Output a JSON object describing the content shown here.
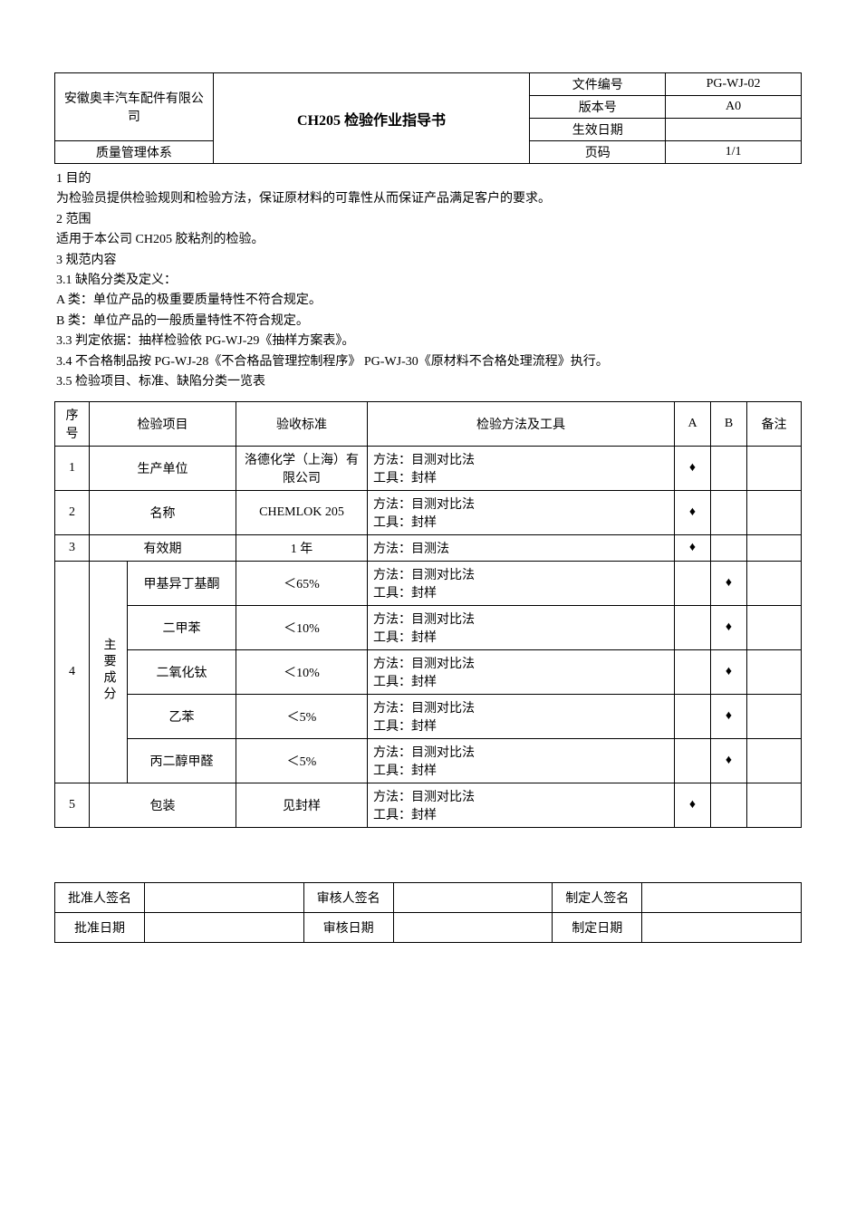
{
  "header": {
    "company": "安徽奥丰汽车配件有限公司",
    "system": "质量管理体系",
    "title": "CH205 检验作业指导书",
    "doc_no_label": "文件编号",
    "doc_no": "PG-WJ-02",
    "version_label": "版本号",
    "version": "A0",
    "effective_label": "生效日期",
    "effective": "",
    "page_label": "页码",
    "page": "1/1"
  },
  "body": {
    "sec1_h": "1 目的",
    "sec1_p": "为检验员提供检验规则和检验方法，保证原材料的可靠性从而保证产品满足客户的要求。",
    "sec2_h": "2 范围",
    "sec2_p": "适用于本公司 CH205 胶粘剂的检验。",
    "sec3_h": "3 规范内容",
    "sec3_1": "3.1 缺陷分类及定义：",
    "classA": "A 类：单位产品的极重要质量特性不符合规定。",
    "classB": "B 类：单位产品的一般质量特性不符合规定。",
    "sec3_3": "3.3 判定依据：抽样检验依 PG-WJ-29《抽样方案表》。",
    "sec3_4": "3.4 不合格制品按 PG-WJ-28《不合格品管理控制程序》 PG-WJ-30《原材料不合格处理流程》执行。",
    "sec3_5": "3.5 检验项目、标准、缺陷分类一览表"
  },
  "insp": {
    "cols": {
      "seq": "序号",
      "item": "检验项目",
      "std": "验收标准",
      "method": "检验方法及工具",
      "A": "A",
      "B": "B",
      "note": "备注"
    },
    "group4_label": "主要成分",
    "diamond": "♦",
    "rows": {
      "r1": {
        "seq": "1",
        "item": "生产单位",
        "std": "洛德化学（上海）有限公司",
        "method": "方法：目测对比法\n工具：封样",
        "A": true,
        "B": false
      },
      "r2": {
        "seq": "2",
        "item": "名称",
        "std": "CHEMLOK 205",
        "method": "方法：目测对比法\n工具：封样",
        "A": true,
        "B": false
      },
      "r3": {
        "seq": "3",
        "item": "有效期",
        "std": "1 年",
        "method": "方法：目测法",
        "A": true,
        "B": false
      },
      "r4a": {
        "item": "甲基异丁基酮",
        "std": "＜65%",
        "method": "方法：目测对比法\n工具：封样",
        "A": false,
        "B": true
      },
      "r4b": {
        "item": "二甲苯",
        "std": "＜10%",
        "method": "方法：目测对比法\n工具：封样",
        "A": false,
        "B": true
      },
      "r4c": {
        "item": "二氧化钛",
        "std": "＜10%",
        "method": "方法：目测对比法\n工具：封样",
        "A": false,
        "B": true
      },
      "r4d": {
        "item": "乙苯",
        "std": "＜5%",
        "method": "方法：目测对比法\n工具：封样",
        "A": false,
        "B": true
      },
      "r4e": {
        "item": "丙二醇甲醛",
        "std": "＜5%",
        "method": "方法：目测对比法\n工具：封样",
        "A": false,
        "B": true
      },
      "r5": {
        "seq": "5",
        "item": "包装",
        "std": "见封样",
        "method": "方法：目测对比法\n工具：封样",
        "A": true,
        "B": false
      }
    },
    "seq4": "4"
  },
  "sig": {
    "approve_name": "批准人签名",
    "review_name": "审核人签名",
    "make_name": "制定人签名",
    "approve_date": "批准日期",
    "review_date": "审核日期",
    "make_date": "制定日期"
  }
}
